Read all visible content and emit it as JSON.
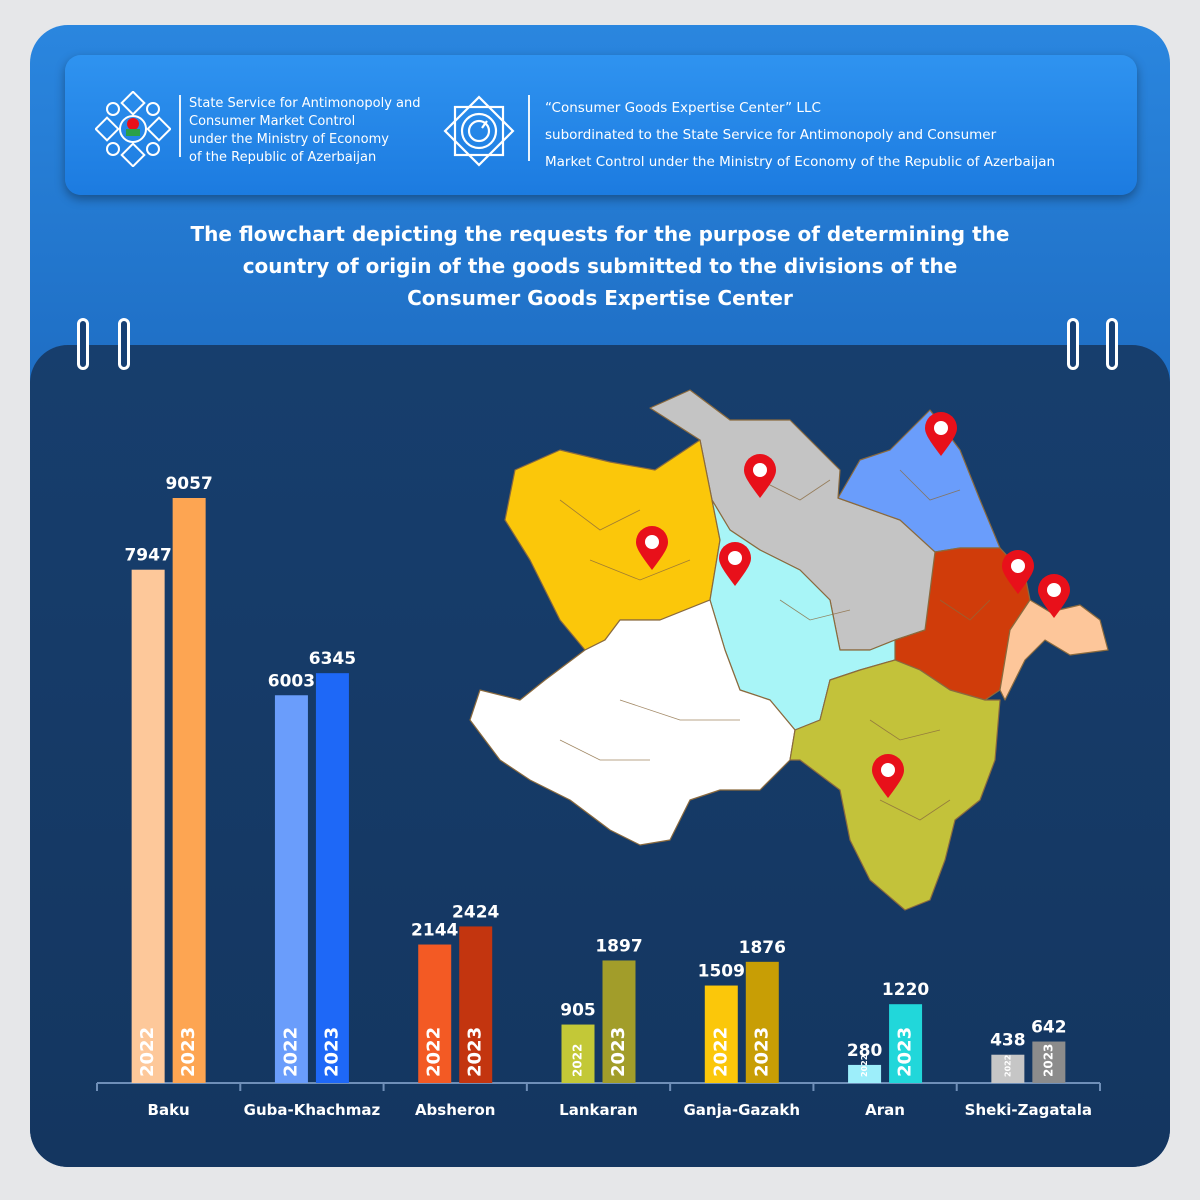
{
  "header": {
    "left_org": {
      "lines": [
        "State Service for Antimonopoly and",
        "Consumer Market Control",
        "under the Ministry of Economy",
        "of the Republic of Azerbaijan"
      ]
    },
    "right_org": {
      "lines": [
        "“Consumer Goods Expertise Center” LLC",
        "subordinated to the State Service for Antimonopoly and Consumer",
        "Market Control under the Ministry of Economy of the Republic of Azerbaijan"
      ]
    }
  },
  "title_lines": [
    "The flowchart depicting the requests for the purpose of determining the",
    "country of origin of the goods submitted to the divisions of the",
    "Consumer Goods Expertise Center"
  ],
  "chart_data": {
    "type": "bar",
    "categories": [
      "Baku",
      "Guba-Khachmaz",
      "Absheron",
      "Lankaran",
      "Ganja-Gazakh",
      "Aran",
      "Sheki-Zagatala"
    ],
    "series": [
      {
        "name": "2022",
        "values": [
          7947,
          6003,
          2144,
          905,
          1509,
          280,
          438
        ]
      },
      {
        "name": "2023",
        "values": [
          9057,
          6345,
          2424,
          1897,
          1876,
          1220,
          642
        ]
      }
    ],
    "colors_2022": [
      "#fdc89a",
      "#6a9dfb",
      "#f35a24",
      "#c3c837",
      "#fbc70a",
      "#9deefa",
      "#c6c6c6"
    ],
    "colors_2023": [
      "#fda552",
      "#1e68f7",
      "#c3350f",
      "#a29d2a",
      "#c89e05",
      "#21d7da",
      "#8c8c8c"
    ],
    "label_color": "#ffffff",
    "title": "",
    "xlabel": "",
    "ylabel": "",
    "ylim": [
      0,
      10000
    ],
    "grid": false,
    "legend": "none"
  },
  "map": {
    "region_colors": {
      "ganja_gazakh": "#fbc70a",
      "sheki_zagatala": "#c4c4c4",
      "guba_khachmaz": "#6a9dfb",
      "aran": "#a8f5f7",
      "absheron": "#d03c0a",
      "baku": "#fdc69a",
      "lankaran": "#c3c23a",
      "karabakh": "#ffffff",
      "border": "#8a6a3e",
      "pin": "#e8101a"
    }
  }
}
